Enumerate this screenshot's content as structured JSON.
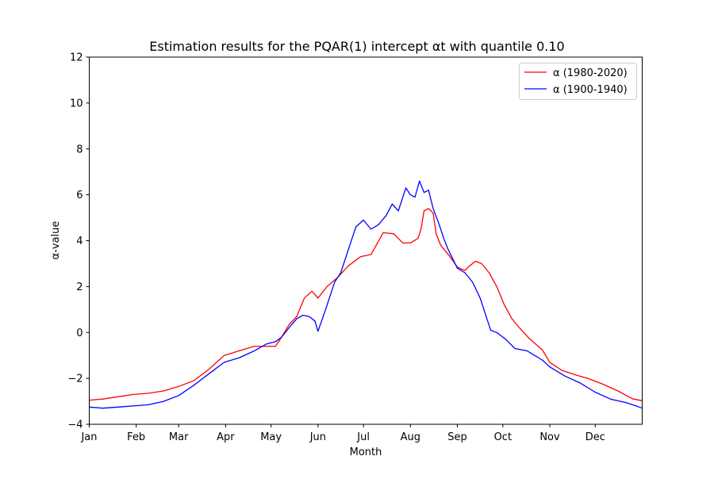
{
  "chart_data": {
    "type": "line",
    "title": "Estimation results for the PQAR(1) intercept αt with quantile 0.10",
    "xlabel": "Month",
    "ylabel": "α-value",
    "xlim": [
      1,
      366
    ],
    "ylim": [
      -4,
      12
    ],
    "grid": false,
    "legend_position": "top-right",
    "month_ticks": {
      "labels": [
        "Jan",
        "Feb",
        "Mar",
        "Apr",
        "May",
        "Jun",
        "Jul",
        "Aug",
        "Sep",
        "Oct",
        "Nov",
        "Dec"
      ],
      "days": [
        1,
        32,
        60,
        91,
        121,
        152,
        182,
        213,
        244,
        274,
        305,
        335
      ]
    },
    "y_ticks": [
      -4,
      -2,
      0,
      2,
      4,
      6,
      8,
      10,
      12
    ],
    "y_tick_labels": [
      "−4",
      "−2",
      "0",
      "2",
      "4",
      "6",
      "8",
      "10",
      "12"
    ],
    "series": [
      {
        "name": "α (1980-2020)",
        "color": "#ff0000",
        "x": [
          1,
          10,
          20,
          30,
          40,
          50,
          60,
          70,
          80,
          90,
          100,
          110,
          118,
          124,
          128,
          133,
          138,
          143,
          148,
          152,
          158,
          165,
          172,
          180,
          187,
          195,
          202,
          208,
          213,
          218,
          220,
          222,
          225,
          228,
          230,
          233,
          238,
          244,
          249,
          252,
          256,
          260,
          265,
          270,
          275,
          280,
          285,
          292,
          300,
          305,
          313,
          322,
          330,
          340,
          350,
          360,
          366
        ],
        "values": [
          -2.95,
          -2.9,
          -2.8,
          -2.7,
          -2.65,
          -2.55,
          -2.35,
          -2.1,
          -1.6,
          -1.0,
          -0.8,
          -0.6,
          -0.6,
          -0.6,
          -0.2,
          0.35,
          0.7,
          1.5,
          1.8,
          1.5,
          2.0,
          2.4,
          2.9,
          3.3,
          3.4,
          4.35,
          4.3,
          3.9,
          3.9,
          4.1,
          4.5,
          5.3,
          5.4,
          5.2,
          4.3,
          3.8,
          3.4,
          2.85,
          2.7,
          2.9,
          3.1,
          3.0,
          2.6,
          2.0,
          1.2,
          0.6,
          0.2,
          -0.3,
          -0.75,
          -1.3,
          -1.65,
          -1.85,
          -2.0,
          -2.25,
          -2.55,
          -2.9,
          -2.97
        ]
      },
      {
        "name": "α (1900-1940)",
        "color": "#0000ff",
        "x": [
          1,
          10,
          20,
          30,
          40,
          50,
          60,
          70,
          80,
          90,
          100,
          110,
          118,
          124,
          128,
          134,
          138,
          142,
          146,
          150,
          152,
          157,
          163,
          167,
          172,
          177,
          182,
          187,
          192,
          197,
          201,
          205,
          210,
          213,
          216,
          219,
          222,
          225,
          228,
          232,
          235,
          238,
          244,
          249,
          254,
          259,
          262,
          266,
          270,
          276,
          282,
          290,
          300,
          305,
          315,
          325,
          335,
          345,
          355,
          362,
          366
        ],
        "values": [
          -3.25,
          -3.3,
          -3.25,
          -3.2,
          -3.15,
          -3.0,
          -2.75,
          -2.3,
          -1.8,
          -1.3,
          -1.1,
          -0.8,
          -0.5,
          -0.4,
          -0.2,
          0.3,
          0.6,
          0.75,
          0.7,
          0.5,
          0.05,
          1.0,
          2.2,
          2.6,
          3.6,
          4.6,
          4.9,
          4.5,
          4.7,
          5.1,
          5.6,
          5.3,
          6.3,
          6.0,
          5.9,
          6.6,
          6.1,
          6.2,
          5.4,
          4.7,
          4.1,
          3.6,
          2.8,
          2.6,
          2.2,
          1.5,
          0.9,
          0.1,
          0.0,
          -0.3,
          -0.7,
          -0.8,
          -1.2,
          -1.5,
          -1.9,
          -2.2,
          -2.6,
          -2.9,
          -3.05,
          -3.2,
          -3.3
        ]
      }
    ]
  }
}
